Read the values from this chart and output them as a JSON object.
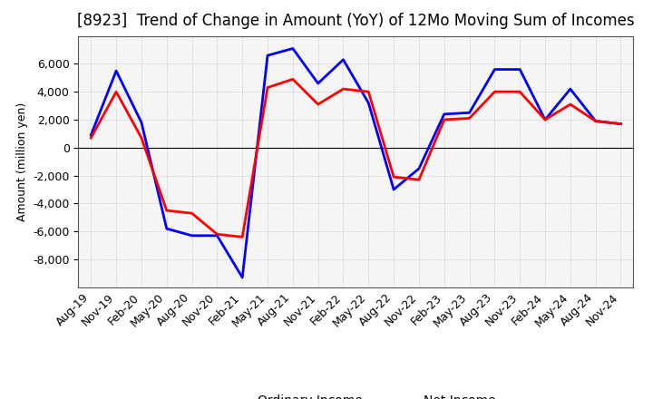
{
  "title": "[8923]  Trend of Change in Amount (YoY) of 12Mo Moving Sum of Incomes",
  "ylabel": "Amount (million yen)",
  "background_color": "#ffffff",
  "plot_bg_color": "#f5f5f5",
  "grid_color": "#aaaaaa",
  "x_labels": [
    "Aug-19",
    "Nov-19",
    "Feb-20",
    "May-20",
    "Aug-20",
    "Nov-20",
    "Feb-21",
    "May-21",
    "Aug-21",
    "Nov-21",
    "Feb-22",
    "May-22",
    "Aug-22",
    "Nov-22",
    "Feb-23",
    "May-23",
    "Aug-23",
    "Nov-23",
    "Feb-24",
    "May-24",
    "Aug-24",
    "Nov-24"
  ],
  "ordinary_income": [
    900,
    5500,
    1800,
    -5800,
    -6300,
    -6300,
    -9300,
    6600,
    7100,
    4600,
    6300,
    3200,
    -3000,
    -1500,
    2400,
    2500,
    5600,
    5600,
    2000,
    4200,
    1900,
    1700
  ],
  "net_income": [
    700,
    4000,
    700,
    -4500,
    -4700,
    -6200,
    -6400,
    4300,
    4900,
    3100,
    4200,
    4000,
    -2100,
    -2300,
    2000,
    2100,
    4000,
    4000,
    2000,
    3100,
    1900,
    1700
  ],
  "ordinary_color": "#0000ff",
  "net_color": "#ff0000",
  "ylim": [
    -10000,
    8000
  ],
  "yticks": [
    -8000,
    -6000,
    -4000,
    -2000,
    0,
    2000,
    4000,
    6000
  ],
  "line_width": 2.0,
  "title_fontsize": 12,
  "legend_fontsize": 10,
  "tick_fontsize": 9
}
